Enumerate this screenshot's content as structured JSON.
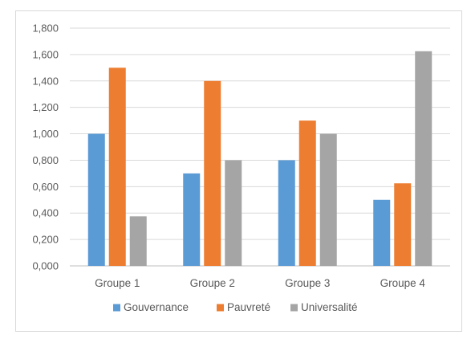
{
  "chart_data": {
    "type": "bar",
    "title": "",
    "xlabel": "",
    "ylabel": "",
    "ylim": [
      0,
      1.8
    ],
    "yticks": [
      "0,000",
      "0,200",
      "0,400",
      "0,600",
      "0,800",
      "1,000",
      "1,200",
      "1,400",
      "1,600",
      "1,800"
    ],
    "categories": [
      "Groupe 1",
      "Groupe 2",
      "Groupe 3",
      "Groupe 4"
    ],
    "series": [
      {
        "name": "Gouvernance",
        "color": "#5b9bd5",
        "values": [
          1.0,
          0.7,
          0.8,
          0.5
        ]
      },
      {
        "name": "Pauvreté",
        "color": "#ed7d31",
        "values": [
          1.5,
          1.4,
          1.1,
          0.625
        ]
      },
      {
        "name": "Universalité",
        "color": "#a5a5a5",
        "values": [
          0.375,
          0.8,
          1.0,
          1.625
        ]
      }
    ],
    "grid": true,
    "legend": "bottom"
  }
}
